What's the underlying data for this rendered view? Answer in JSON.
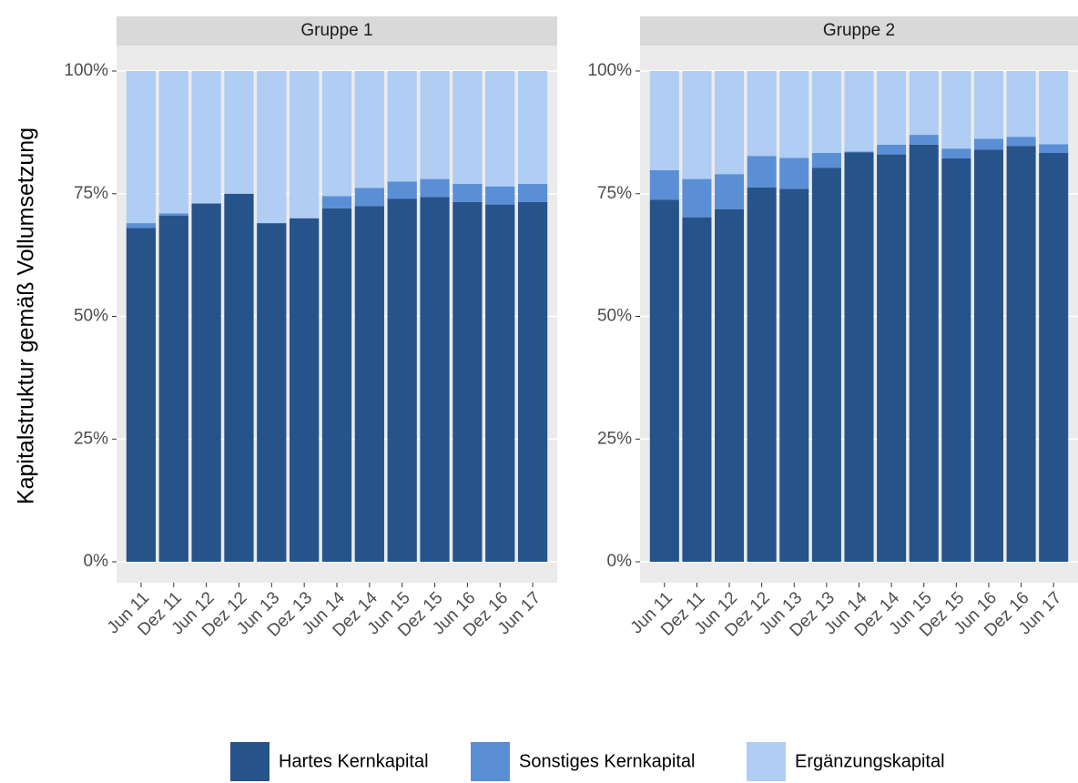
{
  "chart_data": [
    {
      "type": "stacked_bar",
      "title": "Gruppe 1",
      "y_label": "Kapitalstruktur gemäß Vollumsetzung",
      "categories": [
        "Jun 11",
        "Dez 11",
        "Jun 12",
        "Dez 12",
        "Jun 13",
        "Dez 13",
        "Jun 14",
        "Dez 14",
        "Jun 15",
        "Dez 15",
        "Jun 16",
        "Dez 16",
        "Jun 17"
      ],
      "series": [
        {
          "name": "Hartes Kernkapital",
          "color": "#26538a",
          "values": [
            68,
            70.5,
            73,
            75,
            69,
            70,
            72,
            72.5,
            74,
            74.3,
            73.3,
            72.8,
            73.3
          ]
        },
        {
          "name": "Sonstiges Kernkapital",
          "color": "#5a8fd6",
          "values": [
            1,
            0.5,
            0,
            0,
            0,
            0,
            2.5,
            3.7,
            3.5,
            3.7,
            3.7,
            3.7,
            3.7
          ]
        },
        {
          "name": "Ergänzungskapital",
          "color": "#b0cdf3",
          "values": [
            31,
            29,
            27,
            25,
            31,
            30,
            25.5,
            23.8,
            22.5,
            22,
            23,
            23.5,
            23
          ]
        }
      ],
      "ylim": [
        0,
        100
      ],
      "yticks": [
        {
          "value": 0,
          "label": "0%"
        },
        {
          "value": 25,
          "label": "25%"
        },
        {
          "value": 50,
          "label": "50%"
        },
        {
          "value": 75,
          "label": "75%"
        },
        {
          "value": 100,
          "label": "100%"
        }
      ],
      "grid": true
    },
    {
      "type": "stacked_bar",
      "title": "Gruppe 2",
      "categories": [
        "Jun 11",
        "Dez 11",
        "Jun 12",
        "Dez 12",
        "Jun 13",
        "Dez 13",
        "Jun 14",
        "Dez 14",
        "Jun 15",
        "Dez 15",
        "Jun 16",
        "Dez 16",
        "Jun 17"
      ],
      "series": [
        {
          "name": "Hartes Kernkapital",
          "color": "#26538a",
          "values": [
            73.8,
            70.2,
            71.8,
            76.3,
            76,
            80.3,
            83.4,
            83,
            85,
            82.2,
            84,
            84.7,
            83.3
          ]
        },
        {
          "name": "Sonstiges Kernkapital",
          "color": "#5a8fd6",
          "values": [
            6,
            7.8,
            7.2,
            6.4,
            6.3,
            3,
            0.2,
            2,
            2,
            2,
            2.2,
            1.9,
            1.8
          ]
        },
        {
          "name": "Ergänzungskapital",
          "color": "#b0cdf3",
          "values": [
            20.2,
            22,
            21,
            17.3,
            17.7,
            16.7,
            16.4,
            15,
            13,
            15.8,
            13.8,
            13.4,
            14.9
          ]
        }
      ],
      "ylim": [
        0,
        100
      ],
      "yticks": [
        {
          "value": 0,
          "label": "0%"
        },
        {
          "value": 25,
          "label": "25%"
        },
        {
          "value": 50,
          "label": "50%"
        },
        {
          "value": 75,
          "label": "75%"
        },
        {
          "value": 100,
          "label": "100%"
        }
      ],
      "grid": true
    }
  ]
}
